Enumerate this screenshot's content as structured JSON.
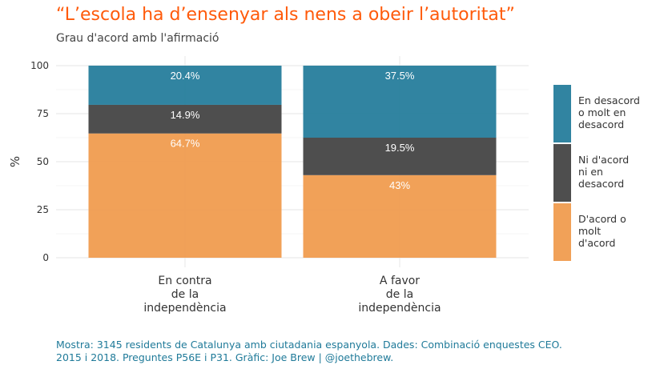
{
  "title": "“L’escola ha d’ensenyar als nens a obeir l’autoritat”",
  "subtitle": "Grau d'acord amb l'afirmació",
  "caption_lines": [
    "Mostra: 3145 residents de Catalunya amb ciutadania espanyola. Dades: Combinació enquestes CEO.",
    "2015 i 2018. Preguntes P56E i P31. Gràfic: Joe Brew | @joethebrew."
  ],
  "chart_data": {
    "type": "bar",
    "stacked": true,
    "ylabel": "%",
    "xlabel": "",
    "ylim": [
      0,
      100
    ],
    "yticks": [
      0,
      25,
      50,
      75,
      100
    ],
    "grid": true,
    "legend_position": "right",
    "categories": [
      [
        "En contra",
        "de la",
        "independència"
      ],
      [
        "A favor",
        "de la",
        "independència"
      ]
    ],
    "series": [
      {
        "name": [
          "D'acord o",
          "molt",
          "d'acord"
        ],
        "color": "#f0994a",
        "values": [
          64.7,
          43
        ],
        "labels": [
          "64.7%",
          "43%"
        ]
      },
      {
        "name": [
          "Ni d'acord",
          "ni en",
          "desacord"
        ],
        "color": "#3f3f3f",
        "values": [
          14.9,
          19.5
        ],
        "labels": [
          "14.9%",
          "19.5%"
        ]
      },
      {
        "name": [
          "En desacord",
          "o molt en",
          "desacord"
        ],
        "color": "#1f7a99",
        "values": [
          20.4,
          37.5
        ],
        "labels": [
          "20.4%",
          "37.5%"
        ]
      }
    ],
    "legend_order": [
      2,
      1,
      0
    ]
  }
}
